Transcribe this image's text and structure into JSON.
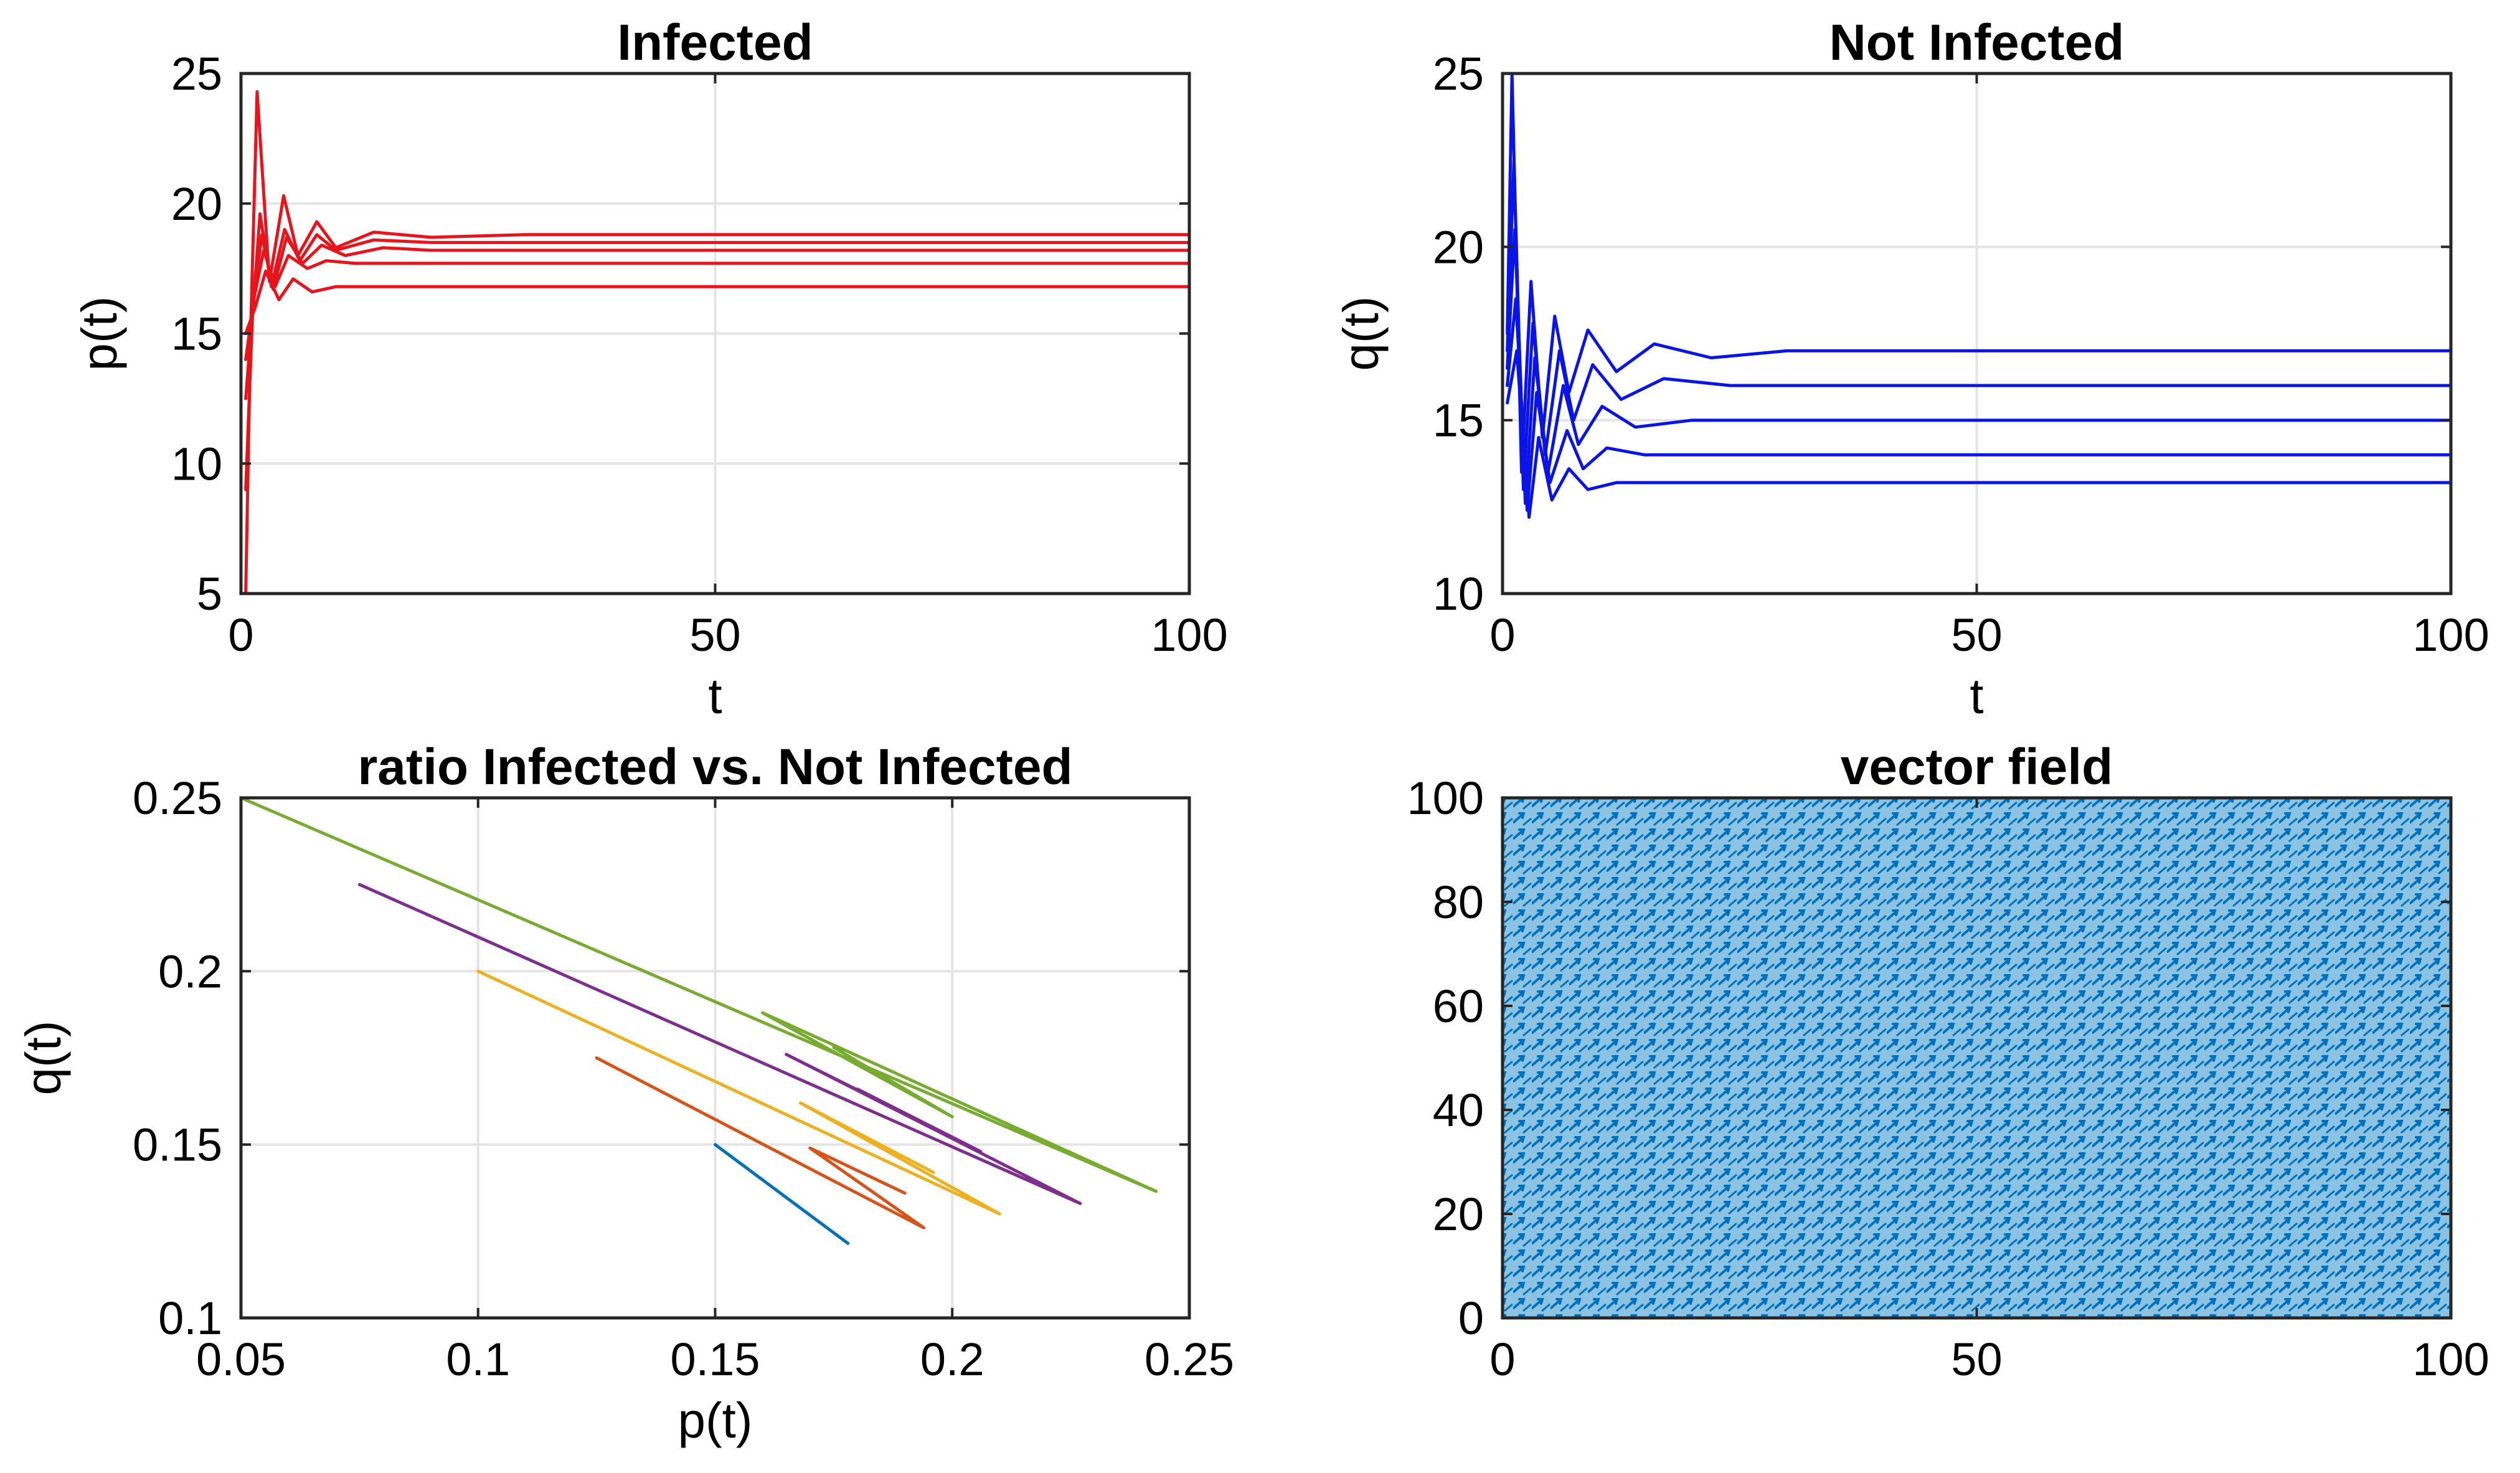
{
  "chart_data": [
    {
      "type": "line",
      "title": "Infected",
      "xlabel": "t",
      "ylabel": "p(t)",
      "xlim": [
        0,
        100
      ],
      "ylim": [
        5,
        25
      ],
      "xticks": [
        0,
        50,
        100
      ],
      "yticks": [
        5,
        10,
        15,
        20,
        25
      ],
      "grid": true,
      "color": "#e8141b",
      "series": [
        {
          "x": [
            0.5,
            1.0,
            1.7,
            3.0,
            4.5,
            6.0,
            8.0,
            10.0,
            14.0,
            20.0,
            30.0,
            100.0
          ],
          "values": [
            5.0,
            14.8,
            24.3,
            17.0,
            20.3,
            18.0,
            19.3,
            18.3,
            18.9,
            18.7,
            18.8,
            18.8
          ]
        },
        {
          "x": [
            0.5,
            1.2,
            2.0,
            3.2,
            4.6,
            6.2,
            8.0,
            10.0,
            14.0,
            20.0,
            30.0,
            100.0
          ],
          "values": [
            9.0,
            15.6,
            19.6,
            16.8,
            19.0,
            17.8,
            18.8,
            18.2,
            18.6,
            18.5,
            18.5,
            18.5
          ]
        },
        {
          "x": [
            0.5,
            1.3,
            2.2,
            3.4,
            4.8,
            6.5,
            8.5,
            11.0,
            15.0,
            20.0,
            100.0
          ],
          "values": [
            12.5,
            16.2,
            18.8,
            16.7,
            18.7,
            17.7,
            18.4,
            18.0,
            18.3,
            18.2,
            18.2
          ]
        },
        {
          "x": [
            0.5,
            1.4,
            2.4,
            3.6,
            5.0,
            7.0,
            9.0,
            12.0,
            100.0
          ],
          "values": [
            14.0,
            16.4,
            18.2,
            16.8,
            18.0,
            17.5,
            17.8,
            17.7,
            17.7
          ]
        },
        {
          "x": [
            0.5,
            1.5,
            2.6,
            4.0,
            5.5,
            7.5,
            10.0,
            100.0
          ],
          "values": [
            15.0,
            16.0,
            17.4,
            16.3,
            17.1,
            16.6,
            16.8,
            16.8
          ]
        }
      ]
    },
    {
      "type": "line",
      "title": "Not Infected",
      "xlabel": "t",
      "ylabel": "q(t)",
      "xlim": [
        0,
        100
      ],
      "ylim": [
        10,
        25
      ],
      "xticks": [
        0,
        50,
        100
      ],
      "yticks": [
        10,
        15,
        20,
        25
      ],
      "grid": true,
      "color": "#0a14e6",
      "series": [
        {
          "x": [
            0.5,
            1.0,
            2.0,
            3.0,
            4.2,
            5.5,
            7.0,
            9.0,
            12.0,
            16.0,
            22.0,
            30.0,
            100.0
          ],
          "values": [
            17.5,
            25.0,
            13.5,
            19.0,
            14.5,
            18.0,
            15.8,
            17.6,
            16.4,
            17.2,
            16.8,
            17.0,
            17.0
          ]
        },
        {
          "x": [
            0.5,
            1.2,
            2.2,
            3.2,
            4.5,
            6.0,
            7.5,
            9.5,
            12.5,
            17.0,
            24.0,
            100.0
          ],
          "values": [
            17.0,
            22.5,
            13.0,
            17.8,
            14.0,
            17.0,
            15.0,
            16.6,
            15.6,
            16.2,
            16.0,
            16.0
          ]
        },
        {
          "x": [
            0.5,
            1.3,
            2.4,
            3.4,
            4.8,
            6.4,
            8.0,
            10.5,
            14.0,
            20.0,
            100.0
          ],
          "values": [
            16.5,
            20.5,
            12.6,
            16.8,
            13.5,
            16.0,
            14.3,
            15.4,
            14.8,
            15.0,
            15.0
          ]
        },
        {
          "x": [
            0.5,
            1.4,
            2.6,
            3.6,
            5.0,
            6.8,
            8.5,
            11.0,
            15.0,
            100.0
          ],
          "values": [
            16.0,
            18.5,
            12.4,
            15.8,
            13.2,
            14.7,
            13.6,
            14.2,
            14.0,
            14.0
          ]
        },
        {
          "x": [
            0.5,
            1.5,
            2.8,
            3.8,
            5.2,
            7.0,
            9.0,
            12.0,
            100.0
          ],
          "values": [
            15.5,
            17.0,
            12.2,
            14.5,
            12.7,
            13.6,
            13.0,
            13.2,
            13.2
          ]
        }
      ]
    },
    {
      "type": "line",
      "title": "ratio Infected vs. Not Infected",
      "xlabel": "p(t)",
      "ylabel": "q(t)",
      "xlim": [
        0.05,
        0.25
      ],
      "ylim": [
        0.1,
        0.25
      ],
      "xticks": [
        0.05,
        0.1,
        0.15,
        0.2,
        0.25
      ],
      "yticks": [
        0.1,
        0.15,
        0.2,
        0.25
      ],
      "grid": true,
      "series": [
        {
          "color": "#0072bd",
          "x": [
            0.15,
            0.178
          ],
          "values": [
            0.15,
            0.1215
          ]
        },
        {
          "color": "#d95319",
          "x": [
            0.125,
            0.194,
            0.17,
            0.19
          ],
          "values": [
            0.175,
            0.126,
            0.149,
            0.136
          ]
        },
        {
          "color": "#edb120",
          "x": [
            0.1,
            0.21,
            0.168,
            0.196
          ],
          "values": [
            0.2,
            0.13,
            0.162,
            0.142
          ]
        },
        {
          "color": "#7e2f8e",
          "x": [
            0.075,
            0.227,
            0.165,
            0.206,
            0.18
          ],
          "values": [
            0.225,
            0.133,
            0.176,
            0.148,
            0.166
          ]
        },
        {
          "color": "#77ac30",
          "x": [
            0.05,
            0.243,
            0.16,
            0.2,
            0.175
          ],
          "values": [
            0.25,
            0.1365,
            0.188,
            0.158,
            0.178
          ]
        }
      ]
    },
    {
      "type": "heatmap",
      "title": "vector field",
      "xlabel": "",
      "ylabel": "",
      "xlim": [
        0,
        100
      ],
      "ylim": [
        0,
        100
      ],
      "xticks": [
        0,
        50,
        100
      ],
      "yticks": [
        0,
        20,
        40,
        60,
        80,
        100
      ],
      "grid": false,
      "color": "#0072bd",
      "background": "#8cc3e3",
      "density": "dense uniform arrows over the whole domain"
    }
  ]
}
